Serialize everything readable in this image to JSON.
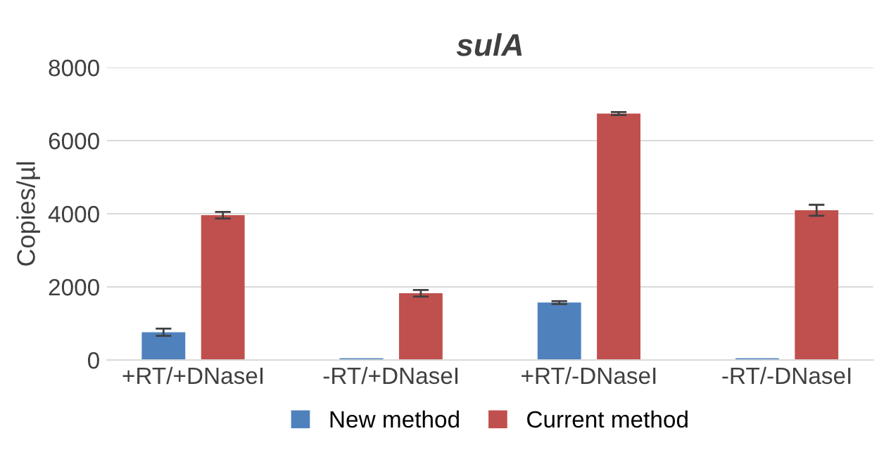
{
  "chart_data": {
    "type": "bar",
    "title": "sulA",
    "ylabel": "Copies/µl",
    "categories": [
      "+RT/+DNaseI",
      "-RT/+DNaseI",
      "+RT/-DNaseI",
      "-RT/-DNaseI"
    ],
    "series": [
      {
        "name": "New method",
        "color": "#4f81bd",
        "values": [
          760,
          50,
          1570,
          50
        ],
        "errors": [
          100,
          null,
          40,
          null
        ]
      },
      {
        "name": "Current method",
        "color": "#c0504d",
        "values": [
          3960,
          1825,
          6740,
          4095
        ],
        "errors": [
          90,
          90,
          40,
          150
        ]
      }
    ],
    "ylim": [
      0,
      8000
    ],
    "yticks": [
      0,
      2000,
      4000,
      6000,
      8000
    ],
    "grid": "y",
    "legend": "bottom"
  }
}
